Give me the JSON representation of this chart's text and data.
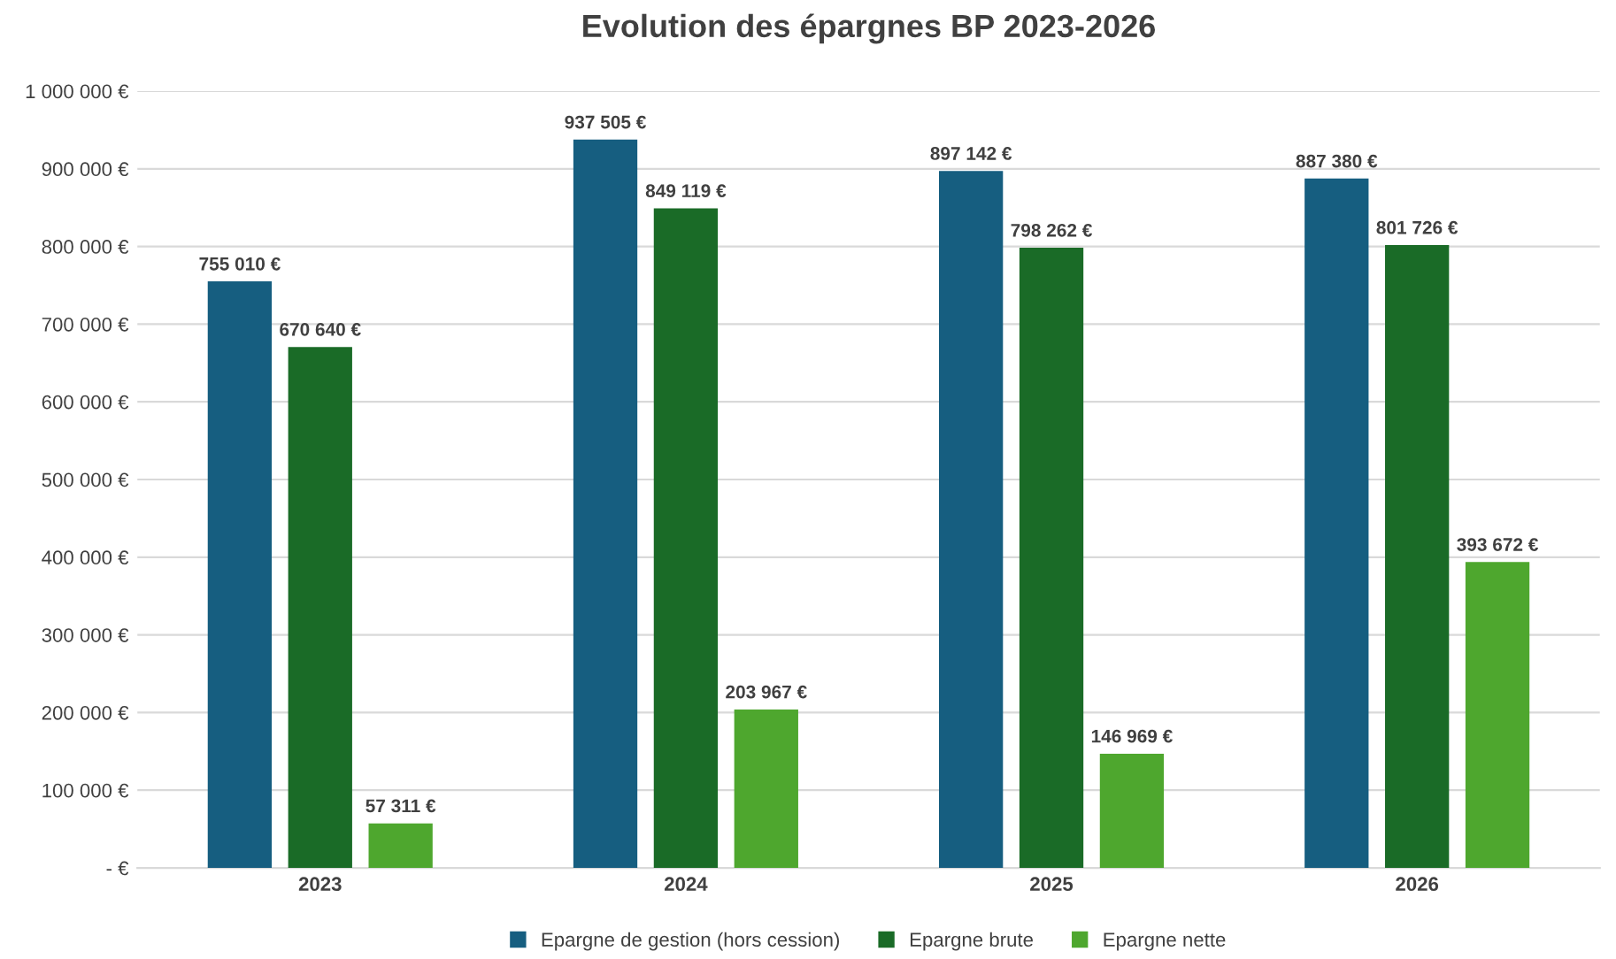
{
  "chart_data": {
    "type": "bar",
    "title": "Evolution des épargnes BP 2023-2026",
    "categories": [
      "2023",
      "2024",
      "2025",
      "2026"
    ],
    "series": [
      {
        "name": "Epargne de gestion (hors cession)",
        "color": "#165e80",
        "values": [
          755010,
          937505,
          897142,
          887380
        ],
        "value_labels": [
          "755 010 €",
          "937 505 €",
          "897 142 €",
          "887 380 €"
        ]
      },
      {
        "name": "Epargne brute",
        "color": "#1a6b27",
        "values": [
          670640,
          849119,
          798262,
          801726
        ],
        "value_labels": [
          "670 640 €",
          "849 119 €",
          "798 262 €",
          "801 726 €"
        ]
      },
      {
        "name": "Epargne nette",
        "color": "#4ea72e",
        "values": [
          57311,
          203967,
          146969,
          393672
        ],
        "value_labels": [
          "57 311 €",
          "203 967 €",
          "146 969 €",
          "393 672 €"
        ]
      }
    ],
    "ylim": [
      0,
      1000000
    ],
    "yticks": [
      {
        "value": 0,
        "label": "- €"
      },
      {
        "value": 100000,
        "label": "100 000 €"
      },
      {
        "value": 200000,
        "label": "200 000 €"
      },
      {
        "value": 300000,
        "label": "300 000 €"
      },
      {
        "value": 400000,
        "label": "400 000 €"
      },
      {
        "value": 500000,
        "label": "500 000 €"
      },
      {
        "value": 600000,
        "label": "600 000 €"
      },
      {
        "value": 700000,
        "label": "700 000 €"
      },
      {
        "value": 800000,
        "label": "800 000 €"
      },
      {
        "value": 900000,
        "label": "900 000 €"
      },
      {
        "value": 1000000,
        "label": "1 000 000 €"
      }
    ],
    "grid": "y",
    "legend": "bottom"
  }
}
